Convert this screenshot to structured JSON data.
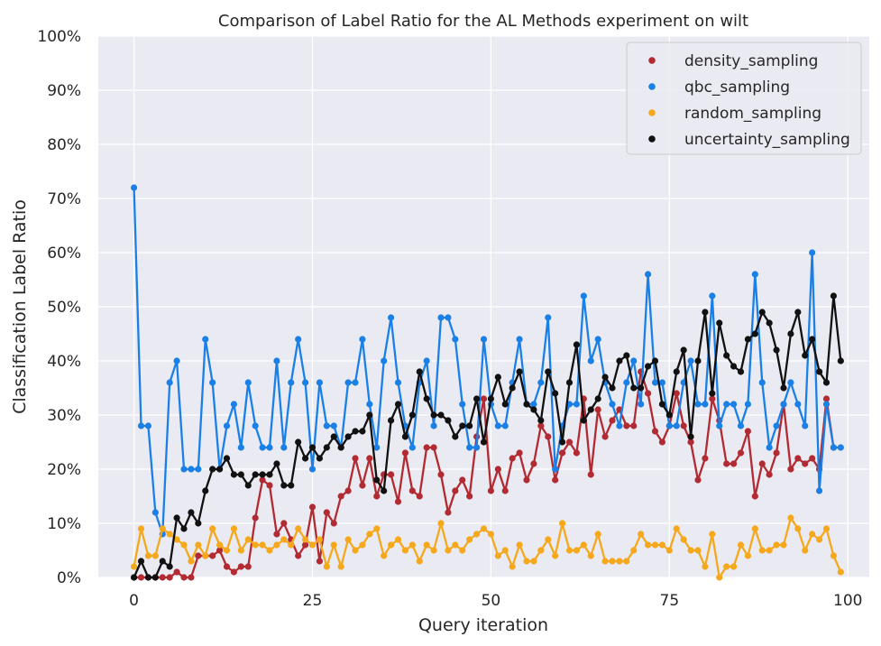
{
  "chart_data": {
    "type": "line",
    "title": "Comparison of Label Ratio for the AL Methods experiment on wilt",
    "xlabel": "Query iteration",
    "ylabel": "Classification Label Ratio",
    "xlim": [
      -5,
      103
    ],
    "ylim": [
      0,
      100
    ],
    "xticks": [
      0,
      25,
      50,
      75,
      100
    ],
    "yticks": [
      0,
      10,
      20,
      30,
      40,
      50,
      60,
      70,
      80,
      90,
      100
    ],
    "ytick_labels": [
      "0%",
      "10%",
      "20%",
      "30%",
      "40%",
      "50%",
      "60%",
      "70%",
      "80%",
      "90%",
      "100%"
    ],
    "grid": true,
    "legend_position": "top-right",
    "series": [
      {
        "name": "density_sampling",
        "color": "#b22a32",
        "values": [
          0,
          0,
          0,
          0,
          0,
          0,
          1,
          0,
          0,
          4,
          4,
          4,
          5,
          2,
          1,
          2,
          2,
          11,
          18,
          17,
          8,
          10,
          7,
          4,
          6,
          13,
          3,
          12,
          10,
          15,
          16,
          22,
          17,
          22,
          15,
          19,
          19,
          14,
          23,
          16,
          15,
          24,
          24,
          19,
          12,
          16,
          18,
          15,
          26,
          33,
          16,
          20,
          16,
          22,
          23,
          18,
          21,
          28,
          26,
          18,
          23,
          25,
          23,
          33,
          19,
          31,
          26,
          29,
          31,
          28,
          28,
          38,
          34,
          27,
          25,
          28,
          34,
          28,
          25,
          18,
          22,
          33,
          29,
          21,
          21,
          23,
          27,
          15,
          21,
          19,
          23,
          32,
          20,
          22,
          21,
          22,
          20,
          33,
          24
        ]
      },
      {
        "name": "qbc_sampling",
        "color": "#1a80e6",
        "values": [
          72,
          28,
          28,
          12,
          8,
          36,
          40,
          20,
          20,
          20,
          44,
          36,
          20,
          28,
          32,
          24,
          36,
          28,
          24,
          24,
          40,
          24,
          36,
          44,
          36,
          20,
          36,
          28,
          28,
          24,
          36,
          36,
          44,
          32,
          24,
          40,
          48,
          36,
          28,
          24,
          36,
          40,
          28,
          48,
          48,
          44,
          32,
          24,
          24,
          44,
          32,
          28,
          28,
          36,
          44,
          32,
          32,
          36,
          48,
          20,
          28,
          32,
          32,
          52,
          40,
          44,
          36,
          32,
          28,
          36,
          40,
          32,
          56,
          36,
          36,
          28,
          28,
          36,
          40,
          32,
          32,
          52,
          28,
          32,
          32,
          28,
          32,
          56,
          36,
          24,
          28,
          32,
          36,
          32,
          28,
          60,
          16,
          32,
          24,
          24
        ]
      },
      {
        "name": "random_sampling",
        "color": "#f5a81c",
        "values": [
          2,
          9,
          4,
          4,
          9,
          8,
          7,
          6,
          3,
          6,
          4,
          9,
          6,
          5,
          9,
          5,
          7,
          6,
          6,
          5,
          6,
          7,
          6,
          9,
          7,
          6,
          7,
          2,
          6,
          2,
          7,
          5,
          6,
          8,
          9,
          4,
          6,
          7,
          5,
          6,
          3,
          6,
          5,
          10,
          5,
          6,
          5,
          7,
          8,
          9,
          8,
          4,
          5,
          2,
          6,
          3,
          3,
          5,
          7,
          4,
          10,
          5,
          5,
          6,
          4,
          8,
          3,
          3,
          3,
          3,
          5,
          8,
          6,
          6,
          6,
          5,
          9,
          7,
          5,
          5,
          2,
          8,
          0,
          2,
          2,
          6,
          4,
          9,
          5,
          5,
          6,
          6,
          11,
          9,
          5,
          8,
          7,
          9,
          4,
          1
        ]
      },
      {
        "name": "uncertainty_sampling",
        "color": "#111111",
        "values": [
          0,
          3,
          0,
          0,
          3,
          2,
          11,
          9,
          12,
          10,
          16,
          20,
          20,
          22,
          19,
          19,
          17,
          19,
          19,
          19,
          21,
          17,
          17,
          25,
          22,
          24,
          22,
          24,
          26,
          24,
          26,
          27,
          27,
          30,
          18,
          16,
          29,
          32,
          26,
          30,
          38,
          33,
          30,
          30,
          29,
          26,
          28,
          28,
          33,
          25,
          33,
          37,
          32,
          35,
          38,
          32,
          31,
          29,
          38,
          34,
          25,
          36,
          43,
          29,
          31,
          33,
          37,
          35,
          40,
          41,
          35,
          35,
          39,
          40,
          32,
          30,
          38,
          42,
          26,
          40,
          49,
          34,
          47,
          41,
          39,
          38,
          44,
          45,
          49,
          47,
          42,
          35,
          45,
          49,
          41,
          44,
          38,
          36,
          52,
          40
        ]
      }
    ]
  }
}
